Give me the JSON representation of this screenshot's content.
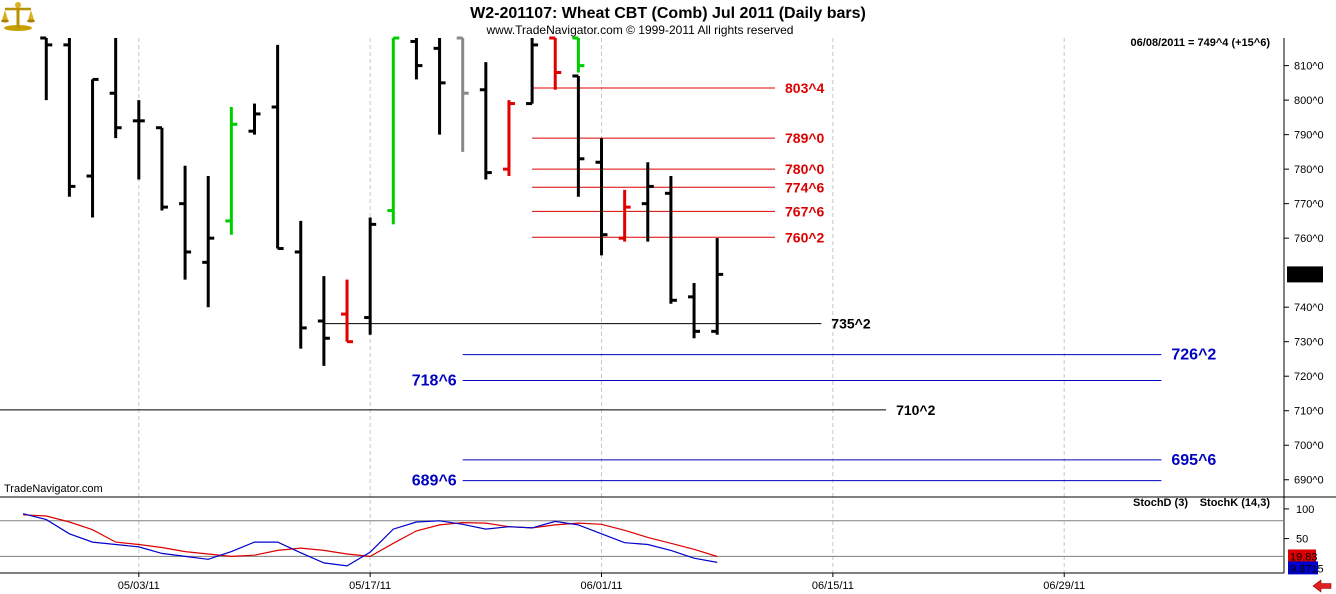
{
  "header": {
    "title": "W2-201107:  Wheat CBT (Comb) Jul 2011  (Daily bars)",
    "copyright": "www.TradeNavigator.com © 1999-2011 All rights reserved",
    "last_info": "06/08/2011 = 749^4 (+15^6)",
    "watermark": "TradeNavigator.com",
    "logo_icon": "trading-scale-logo-icon"
  },
  "colors": {
    "up": "#000000",
    "down": "#000000",
    "green": "#00cc00",
    "red": "#e00000",
    "gray": "#888888",
    "blue_level": "#0000c0",
    "red_level": "#dd0000",
    "black_level": "#000000",
    "stoch_d": "#dd0000",
    "stoch_k": "#0000cc",
    "grid": "#c8c8c8"
  },
  "chart_data": [
    {
      "type": "ohlc",
      "title": "W2-201107:  Wheat CBT (Comb) Jul 2011  (Daily bars)",
      "y_tick_labels": [
        "810^0",
        "800^0",
        "790^0",
        "780^0",
        "770^0",
        "760^0",
        "740^0",
        "730^0",
        "720^0",
        "710^0",
        "700^0",
        "690^0"
      ],
      "y_ticks": [
        810,
        800,
        790,
        780,
        770,
        760,
        740,
        730,
        720,
        710,
        700,
        690
      ],
      "ylim": [
        685,
        818
      ],
      "x_tick_labels": [
        "05/03/11",
        "05/17/11",
        "06/01/11",
        "06/15/11",
        "06/29/11"
      ],
      "x_tick_positions": [
        5,
        15,
        25,
        35,
        45
      ],
      "x_range": [
        -1,
        54.5
      ],
      "last_price_label": "749^4",
      "last_price": 749.5,
      "bars": [
        {
          "x": 1,
          "o": 818,
          "h": 818,
          "l": 800,
          "c": 816,
          "color": "black"
        },
        {
          "x": 2,
          "o": 816,
          "h": 818,
          "l": 772,
          "c": 775,
          "color": "black"
        },
        {
          "x": 3,
          "o": 778,
          "h": 806,
          "l": 766,
          "c": 806,
          "color": "black"
        },
        {
          "x": 4,
          "o": 802,
          "h": 818,
          "l": 789,
          "c": 792,
          "color": "black"
        },
        {
          "x": 5,
          "o": 794,
          "h": 800,
          "l": 777,
          "c": 794,
          "color": "black"
        },
        {
          "x": 6,
          "o": 792,
          "h": 792,
          "l": 768,
          "c": 769,
          "color": "black"
        },
        {
          "x": 7,
          "o": 770,
          "h": 781,
          "l": 748,
          "c": 756,
          "color": "black"
        },
        {
          "x": 8,
          "o": 753,
          "h": 778,
          "l": 740,
          "c": 760,
          "color": "black"
        },
        {
          "x": 9,
          "o": 765,
          "h": 798,
          "l": 761,
          "c": 793,
          "color": "green"
        },
        {
          "x": 10,
          "o": 791,
          "h": 799,
          "l": 790,
          "c": 796,
          "color": "black"
        },
        {
          "x": 11,
          "o": 798,
          "h": 816,
          "l": 757,
          "c": 757,
          "color": "black"
        },
        {
          "x": 12,
          "o": 756,
          "h": 765,
          "l": 728,
          "c": 734,
          "color": "black"
        },
        {
          "x": 13,
          "o": 736,
          "h": 749,
          "l": 723,
          "c": 731,
          "color": "black"
        },
        {
          "x": 14,
          "o": 738,
          "h": 748,
          "l": 730,
          "c": 730,
          "color": "red"
        },
        {
          "x": 15,
          "o": 737,
          "h": 766,
          "l": 732,
          "c": 764,
          "color": "black"
        },
        {
          "x": 16,
          "o": 768,
          "h": 818,
          "l": 764,
          "c": 818,
          "color": "green"
        },
        {
          "x": 17,
          "o": 817,
          "h": 818,
          "l": 806,
          "c": 810,
          "color": "black"
        },
        {
          "x": 18,
          "o": 815,
          "h": 818,
          "l": 790,
          "c": 805,
          "color": "black"
        },
        {
          "x": 19,
          "o": 818,
          "h": 818,
          "l": 785,
          "c": 802,
          "color": "gray"
        },
        {
          "x": 20,
          "o": 803,
          "h": 811,
          "l": 777,
          "c": 779,
          "color": "black"
        },
        {
          "x": 21,
          "o": 780,
          "h": 800,
          "l": 778,
          "c": 799,
          "color": "red"
        },
        {
          "x": 22,
          "o": 799,
          "h": 818,
          "l": 799,
          "c": 816,
          "color": "black"
        },
        {
          "x": 23,
          "o": 818,
          "h": 818,
          "l": 803,
          "c": 808,
          "color": "red"
        },
        {
          "x": 24,
          "o": 818,
          "h": 818,
          "l": 808,
          "c": 810,
          "color": "green"
        },
        {
          "x": 24,
          "o": 807,
          "h": 807,
          "l": 772,
          "c": 783,
          "color": "black"
        },
        {
          "x": 25,
          "o": 782,
          "h": 789,
          "l": 755,
          "c": 761,
          "color": "black"
        },
        {
          "x": 26,
          "o": 760,
          "h": 774,
          "l": 759,
          "c": 769,
          "color": "red"
        },
        {
          "x": 27,
          "o": 770,
          "h": 782,
          "l": 759,
          "c": 775,
          "color": "black"
        },
        {
          "x": 28,
          "o": 773,
          "h": 778,
          "l": 741,
          "c": 742,
          "color": "black"
        },
        {
          "x": 29,
          "o": 743,
          "h": 747,
          "l": 731,
          "c": 733,
          "color": "black"
        },
        {
          "x": 30,
          "o": 733,
          "h": 760,
          "l": 732,
          "c": 749.5,
          "color": "black"
        }
      ],
      "levels": [
        {
          "label": "803^4",
          "value": 803.5,
          "x1": 22,
          "x2": 32.5,
          "color": "red",
          "label_side": "right"
        },
        {
          "label": "789^0",
          "value": 789.0,
          "x1": 22,
          "x2": 32.5,
          "color": "red",
          "label_side": "right"
        },
        {
          "label": "780^0",
          "value": 780.0,
          "x1": 22,
          "x2": 32.5,
          "color": "red",
          "label_side": "right"
        },
        {
          "label": "774^6",
          "value": 774.75,
          "x1": 22,
          "x2": 32.5,
          "color": "red",
          "label_side": "right"
        },
        {
          "label": "767^6",
          "value": 767.75,
          "x1": 22,
          "x2": 32.5,
          "color": "red",
          "label_side": "right"
        },
        {
          "label": "760^2",
          "value": 760.25,
          "x1": 22,
          "x2": 32.5,
          "color": "red",
          "label_side": "right"
        },
        {
          "label": "735^2",
          "value": 735.25,
          "x1": 13,
          "x2": 34.5,
          "color": "black",
          "label_side": "right"
        },
        {
          "label": "726^2",
          "value": 726.25,
          "x1": 19,
          "x2": 49.2,
          "color": "blue",
          "label_side": "right"
        },
        {
          "label": "718^6",
          "value": 718.75,
          "x1": 19,
          "x2": 49.2,
          "color": "blue",
          "label_side": "left"
        },
        {
          "label": "710^2",
          "value": 710.25,
          "x1": -1,
          "x2": 37.3,
          "color": "black",
          "label_side": "right"
        },
        {
          "label": "695^6",
          "value": 695.75,
          "x1": 19,
          "x2": 49.2,
          "color": "blue",
          "label_side": "right"
        },
        {
          "label": "689^6",
          "value": 689.75,
          "x1": 19,
          "x2": 49.2,
          "color": "blue",
          "label_side": "left"
        }
      ]
    },
    {
      "type": "line",
      "legend": [
        "StochD (3)",
        "StochK (14,3)"
      ],
      "y_tick_labels": [
        "100",
        "50"
      ],
      "y_ticks": [
        100,
        50
      ],
      "ylim": [
        -8,
        115
      ],
      "ref_lines": [
        80,
        20
      ],
      "last_labels": [
        "19.83",
        "9.8715"
      ],
      "series": [
        {
          "name": "StochD (3)",
          "color": "red",
          "x": [
            0,
            1,
            2,
            3,
            4,
            5,
            6,
            7,
            8,
            9,
            10,
            11,
            12,
            13,
            14,
            15,
            16,
            17,
            18,
            19,
            20,
            21,
            22,
            23,
            24,
            25,
            26,
            27,
            28,
            29,
            30
          ],
          "values": [
            90,
            88,
            78,
            65,
            44,
            40,
            35,
            28,
            24,
            20,
            22,
            30,
            34,
            30,
            24,
            20,
            42,
            63,
            73,
            77,
            76,
            70,
            68,
            73,
            76,
            74,
            64,
            52,
            42,
            32,
            19.83
          ]
        },
        {
          "name": "StochK (14,3)",
          "color": "blue",
          "x": [
            0,
            1,
            2,
            3,
            4,
            5,
            6,
            7,
            8,
            9,
            10,
            11,
            12,
            13,
            14,
            15,
            16,
            17,
            18,
            19,
            20,
            21,
            22,
            23,
            24,
            25,
            26,
            27,
            28,
            29,
            30
          ],
          "values": [
            92,
            82,
            58,
            44,
            40,
            36,
            25,
            20,
            15,
            28,
            44,
            44,
            26,
            9,
            4,
            27,
            66,
            78,
            80,
            74,
            66,
            70,
            68,
            79,
            73,
            58,
            43,
            40,
            30,
            17,
            9.87
          ]
        }
      ]
    }
  ]
}
